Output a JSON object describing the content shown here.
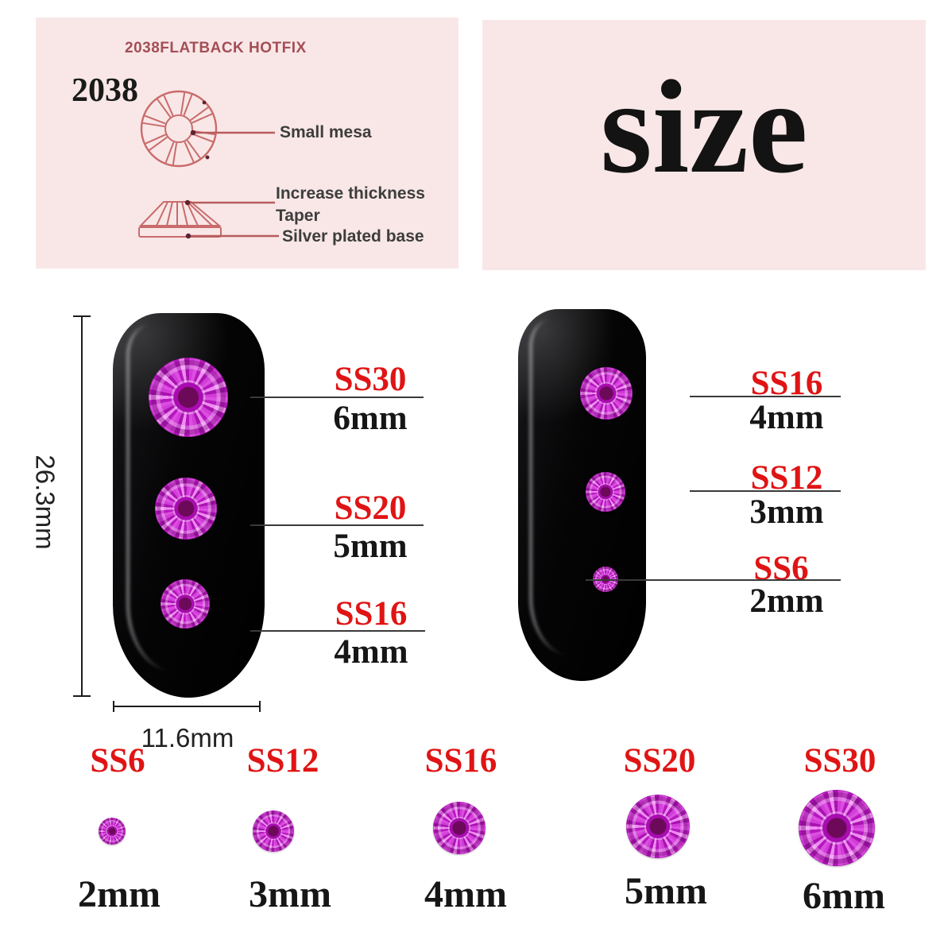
{
  "spec_panel": {
    "title": "2038FLATBACK HOTFIX",
    "model": "2038",
    "callouts": {
      "mesa": "Small mesa",
      "thickness": "Increase thickness",
      "taper": "Taper",
      "base": "Silver plated base"
    }
  },
  "size_panel": {
    "heading": "size"
  },
  "nail_left": {
    "height_label": "26.3mm",
    "width_label": "11.6mm",
    "callouts": [
      {
        "code": "SS30",
        "size": "6mm"
      },
      {
        "code": "SS20",
        "size": "5mm"
      },
      {
        "code": "SS16",
        "size": "4mm"
      }
    ]
  },
  "nail_right": {
    "callouts": [
      {
        "code": "SS16",
        "size": "4mm"
      },
      {
        "code": "SS12",
        "size": "3mm"
      },
      {
        "code": "SS6",
        "size": "2mm"
      }
    ]
  },
  "size_chart": [
    {
      "code": "SS6",
      "size": "2mm"
    },
    {
      "code": "SS12",
      "size": "3mm"
    },
    {
      "code": "SS16",
      "size": "4mm"
    },
    {
      "code": "SS20",
      "size": "5mm"
    },
    {
      "code": "SS30",
      "size": "6mm"
    }
  ],
  "colors": {
    "panel_pink": "#f9e7e7",
    "accent_red": "#e01414",
    "stone_magenta": "#cb2fd1",
    "diagram_line": "#c96b6b",
    "spec_title": "#a34e56",
    "nail_black": "#050506"
  }
}
